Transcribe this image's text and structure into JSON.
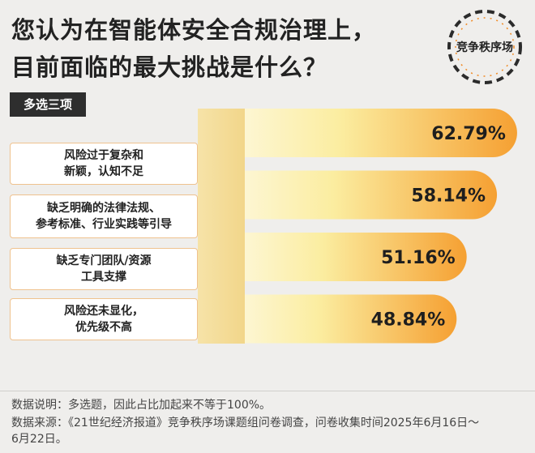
{
  "header": {
    "title_line1": "您认为在智能体安全合规治理上，",
    "title_line2": "目前面临的最大挑战是什么？",
    "badge": "多选三项",
    "logo_text": "竞争秩序场"
  },
  "chart_data": {
    "type": "bar",
    "orientation": "horizontal",
    "categories": [
      "风险过于复杂和\n新颖，认知不足",
      "缺乏明确的法律法规、\n参考标准、行业实践等引导",
      "缺乏专门团队/资源\n工具支撑",
      "风险还未显化，\n优先级不高"
    ],
    "values": [
      62.79,
      58.14,
      51.16,
      48.84
    ],
    "value_labels": [
      "62.79%",
      "58.14%",
      "51.16%",
      "48.84%"
    ],
    "unit": "%",
    "colors": {
      "bar_light": "#fbeda0",
      "bar_dark": "#f5a032",
      "axis_bar": "#f2d68a",
      "label_border": "#efc28e"
    }
  },
  "footer": {
    "note1": "数据说明：多选题，因此占比加起来不等于100%。",
    "note2": "数据来源：《21世纪经济报道》竞争秩序场课题组问卷调查，问卷收集时间2025年6月16日～",
    "note3": "6月22日。"
  }
}
